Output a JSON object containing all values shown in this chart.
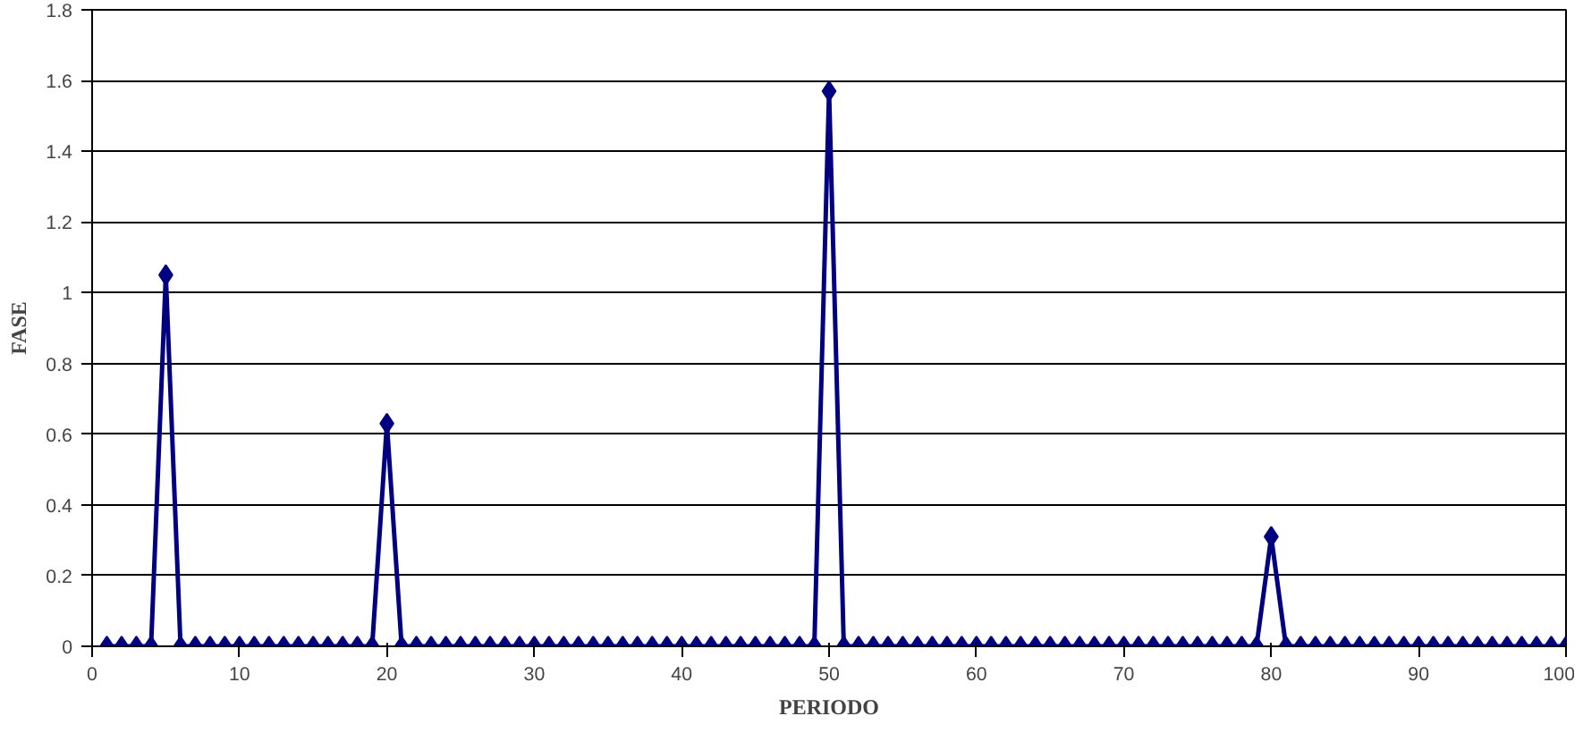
{
  "chart_data": {
    "type": "line",
    "xlabel": "PERIODO",
    "ylabel": "FASE",
    "x": [
      1,
      2,
      3,
      4,
      5,
      6,
      7,
      8,
      9,
      10,
      11,
      12,
      13,
      14,
      15,
      16,
      17,
      18,
      19,
      20,
      21,
      22,
      23,
      24,
      25,
      26,
      27,
      28,
      29,
      30,
      31,
      32,
      33,
      34,
      35,
      36,
      37,
      38,
      39,
      40,
      41,
      42,
      43,
      44,
      45,
      46,
      47,
      48,
      49,
      50,
      51,
      52,
      53,
      54,
      55,
      56,
      57,
      58,
      59,
      60,
      61,
      62,
      63,
      64,
      65,
      66,
      67,
      68,
      69,
      70,
      71,
      72,
      73,
      74,
      75,
      76,
      77,
      78,
      79,
      80,
      81,
      82,
      83,
      84,
      85,
      86,
      87,
      88,
      89,
      90,
      91,
      92,
      93,
      94,
      95,
      96,
      97,
      98,
      99,
      100
    ],
    "series": [
      {
        "color": "#000080",
        "values": [
          0,
          0,
          0,
          0,
          1.05,
          0,
          0,
          0,
          0,
          0,
          0,
          0,
          0,
          0,
          0,
          0,
          0,
          0,
          0,
          0.63,
          0,
          0,
          0,
          0,
          0,
          0,
          0,
          0,
          0,
          0,
          0,
          0,
          0,
          0,
          0,
          0,
          0,
          0,
          0,
          0,
          0,
          0,
          0,
          0,
          0,
          0,
          0,
          0,
          0,
          1.57,
          0,
          0,
          0,
          0,
          0,
          0,
          0,
          0,
          0,
          0,
          0,
          0,
          0,
          0,
          0,
          0,
          0,
          0,
          0,
          0,
          0,
          0,
          0,
          0,
          0,
          0,
          0,
          0,
          0,
          0.31,
          0,
          0,
          0,
          0,
          0,
          0,
          0,
          0,
          0,
          0,
          0,
          0,
          0,
          0,
          0,
          0,
          0,
          0,
          0,
          0
        ]
      }
    ],
    "xlim": [
      0,
      100
    ],
    "xticks": [
      0,
      10,
      20,
      30,
      40,
      50,
      60,
      70,
      80,
      90,
      100
    ],
    "ylim": [
      0,
      1.8
    ],
    "yticks": [
      0,
      0.2,
      0.4,
      0.6,
      0.8,
      1,
      1.2,
      1.4,
      1.6,
      1.8
    ],
    "grid": "y",
    "marker": "diamond",
    "line_style": "solid"
  }
}
